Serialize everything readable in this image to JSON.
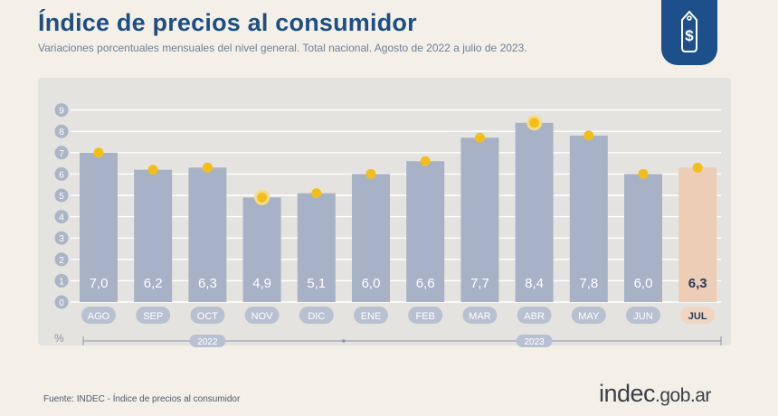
{
  "header": {
    "title": "Índice de precios al consumidor",
    "subtitle": "Variaciones porcentuales mensuales del nivel general. Total nacional. Agosto de 2022 a julio de 2023."
  },
  "badge": {
    "icon": "price-tag-dollar-icon"
  },
  "footer": {
    "source": "Fuente: INDEC - Índice de precios al consumidor",
    "brand_main": "indec",
    "brand_domain": ".gob.ar"
  },
  "colors": {
    "bar": "#a7b2c6",
    "bar_highlight": "#edcdb6",
    "dot": "#f2bf1a",
    "month_pill": "#b8c1d2",
    "month_pill_highlight": "#f0d5c1",
    "title": "#1f4e84"
  },
  "chart_data": {
    "type": "bar",
    "title": "Índice de precios al consumidor",
    "unit_label": "%",
    "ylim": [
      0,
      9
    ],
    "yticks": [
      0,
      1,
      2,
      3,
      4,
      5,
      6,
      7,
      8,
      9
    ],
    "grid": true,
    "categories": [
      "AGO",
      "SEP",
      "OCT",
      "NOV",
      "DIC",
      "ENE",
      "FEB",
      "MAR",
      "ABR",
      "MAY",
      "JUN",
      "JUL"
    ],
    "values": [
      7.0,
      6.2,
      6.3,
      4.9,
      5.1,
      6.0,
      6.6,
      7.7,
      8.4,
      7.8,
      6.0,
      6.3
    ],
    "value_labels": [
      "7,0",
      "6,2",
      "6,3",
      "4,9",
      "5,1",
      "6,0",
      "6,6",
      "7,7",
      "8,4",
      "7,8",
      "6,0",
      "6,3"
    ],
    "highlight": [
      "JUL"
    ],
    "dot_emphasis": [
      "NOV",
      "ABR"
    ],
    "year_groups": [
      {
        "label": "2022",
        "start": 0,
        "end": 4
      },
      {
        "label": "2023",
        "start": 5,
        "end": 11
      }
    ]
  }
}
